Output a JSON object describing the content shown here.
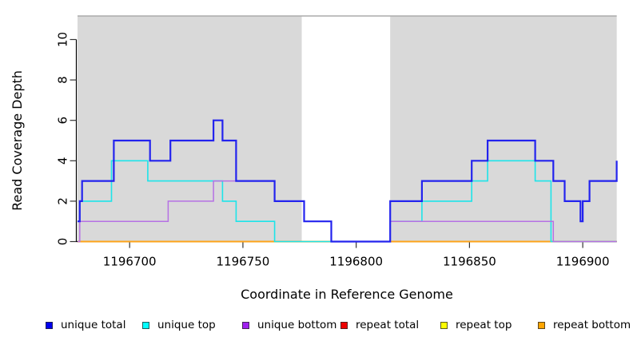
{
  "figure": {
    "y_axis": {
      "label": "Read Coverage Depth"
    },
    "x_axis": {
      "label": "Coordinate in Reference Genome"
    },
    "legend": [
      {
        "label": "unique total",
        "color": "#0000EE"
      },
      {
        "label": "unique top",
        "color": "#00FFFF"
      },
      {
        "label": "unique bottom",
        "color": "#A020F0"
      },
      {
        "label": "repeat total",
        "color": "#EE0000"
      },
      {
        "label": "repeat top",
        "color": "#FFFF00"
      },
      {
        "label": "repeat bottom",
        "color": "#FFA500"
      }
    ]
  },
  "chart_data": {
    "type": "line",
    "subtype": "step-post",
    "title": "",
    "xlabel": "Coordinate in Reference Genome",
    "ylabel": "Read Coverage Depth",
    "xlim": [
      1196677,
      1196915
    ],
    "ylim": [
      0,
      11
    ],
    "xticks": [
      1196700,
      1196750,
      1196800,
      1196850,
      1196900
    ],
    "yticks": [
      0,
      2,
      4,
      6,
      8,
      10
    ],
    "grid": false,
    "legend_position": "bottom",
    "plot_background": "#D9D9D9",
    "background_regions": [
      {
        "x0": 1196677,
        "x1": 1196776,
        "fill": "#D9D9D9",
        "name": "covered-region-left"
      },
      {
        "x0": 1196776,
        "x1": 1196815,
        "fill": "#FFFFFF",
        "name": "gap-region"
      },
      {
        "x0": 1196815,
        "x1": 1196915,
        "fill": "#D9D9D9",
        "name": "covered-region-right"
      }
    ],
    "series": [
      {
        "name": "unique total",
        "color": "#2323EE",
        "width": 2.2,
        "points": [
          [
            1196677,
            1
          ],
          [
            1196678,
            2
          ],
          [
            1196679,
            3
          ],
          [
            1196693,
            5
          ],
          [
            1196709,
            4
          ],
          [
            1196718,
            5
          ],
          [
            1196737,
            6
          ],
          [
            1196741,
            5
          ],
          [
            1196747,
            3
          ],
          [
            1196764,
            2
          ],
          [
            1196777,
            1
          ],
          [
            1196789,
            0
          ],
          [
            1196815,
            2
          ],
          [
            1196829,
            3
          ],
          [
            1196851,
            4
          ],
          [
            1196858,
            5
          ],
          [
            1196879,
            4
          ],
          [
            1196887,
            3
          ],
          [
            1196892,
            2
          ],
          [
            1196899,
            1
          ],
          [
            1196900,
            2
          ],
          [
            1196903,
            3
          ],
          [
            1196915,
            4
          ]
        ]
      },
      {
        "name": "unique top",
        "color": "#1DE4E9",
        "width": 1.6,
        "points": [
          [
            1196677,
            1
          ],
          [
            1196678,
            2
          ],
          [
            1196692,
            4
          ],
          [
            1196708,
            3
          ],
          [
            1196741,
            2
          ],
          [
            1196747,
            1
          ],
          [
            1196764,
            0
          ],
          [
            1196815,
            1
          ],
          [
            1196829,
            2
          ],
          [
            1196851,
            3
          ],
          [
            1196858,
            4
          ],
          [
            1196879,
            3
          ],
          [
            1196886,
            0
          ],
          [
            1196915,
            0
          ]
        ]
      },
      {
        "name": "unique bottom",
        "color": "#B671E4",
        "width": 1.5,
        "points": [
          [
            1196677,
            0
          ],
          [
            1196678,
            1
          ],
          [
            1196717,
            2
          ],
          [
            1196737,
            3
          ],
          [
            1196764,
            2
          ],
          [
            1196777,
            1
          ],
          [
            1196789,
            0
          ],
          [
            1196815,
            1
          ],
          [
            1196887,
            0
          ],
          [
            1196915,
            0
          ]
        ]
      },
      {
        "name": "repeat total",
        "color": "#DD0000",
        "width": 1.4,
        "points": [
          [
            1196677,
            0
          ],
          [
            1196915,
            0
          ]
        ]
      },
      {
        "name": "repeat top",
        "color": "#FFFF00",
        "width": 1.4,
        "points": [
          [
            1196677,
            0
          ],
          [
            1196915,
            0
          ]
        ]
      },
      {
        "name": "repeat bottom",
        "color": "#FFA319",
        "width": 1.8,
        "points": [
          [
            1196677,
            0
          ],
          [
            1196915,
            0
          ]
        ]
      }
    ]
  }
}
